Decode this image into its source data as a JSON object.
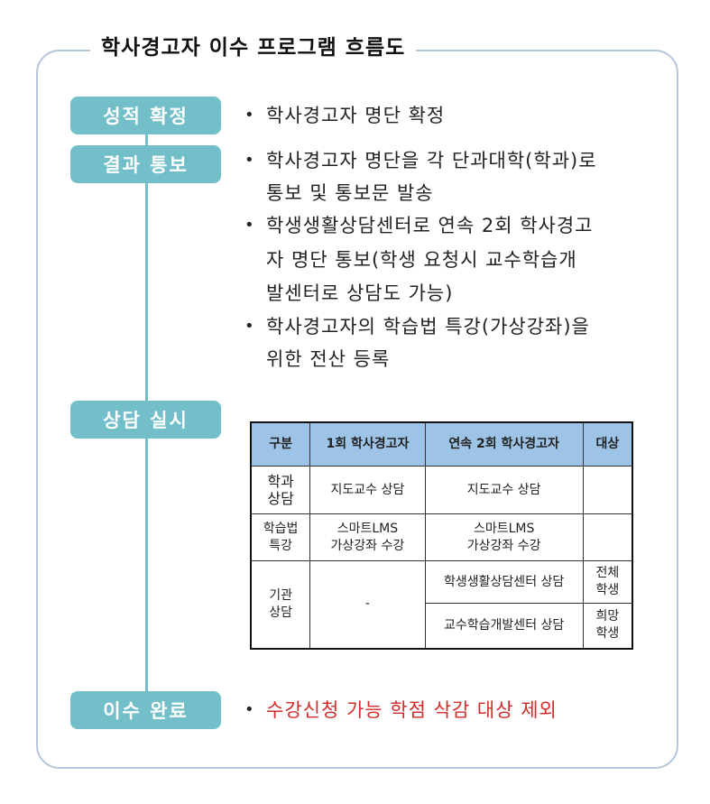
{
  "title": "학사경고자 이수 프로그램 흐름도",
  "steps": [
    "성적 확정",
    "결과 통보",
    "상담 실시",
    "이수 완료"
  ],
  "step1_lines": [
    "학사경고자 명단 확정"
  ],
  "step2_bullets": [
    [
      "학사경고자 명단을 각 단과대학(학과)로",
      "통보 및 통보문 발송"
    ],
    [
      "학생생활상담센터로 연속 2회 학사경고",
      "자 명단 통보(학생 요청시 교수학습개",
      "발센터로 상담도 가능)"
    ],
    [
      "학사경고자의 학습법 특강(가상강좌)을",
      "위한 전산 등록"
    ]
  ],
  "step4_line": "수강신청 가능 학점 삭감 대상 제외",
  "colors": {
    "step_box": "#72bfc9",
    "table_header": "#9dc3e6",
    "frame": "#b4c6da",
    "highlight": "#d42a2a"
  },
  "table": {
    "headers": [
      "구분",
      "1회 학사경고자",
      "연속 2회 학사경고자",
      "대상"
    ],
    "rows": [
      {
        "label": "학과\n상담",
        "first": "지도교수 상담",
        "second": "지도교수 상담",
        "target": ""
      },
      {
        "label": "학습법\n특강",
        "first": "스마트LMS\n가상강좌 수강",
        "second": "스마트LMS\n가상강좌 수강",
        "target": ""
      },
      {
        "label": "기관\n상담",
        "first": "-",
        "second": "학생생활상담센터 상담",
        "target": "전체\n학생"
      },
      {
        "second": "교수학습개발센터 상담",
        "target": "희망\n학생"
      }
    ]
  }
}
